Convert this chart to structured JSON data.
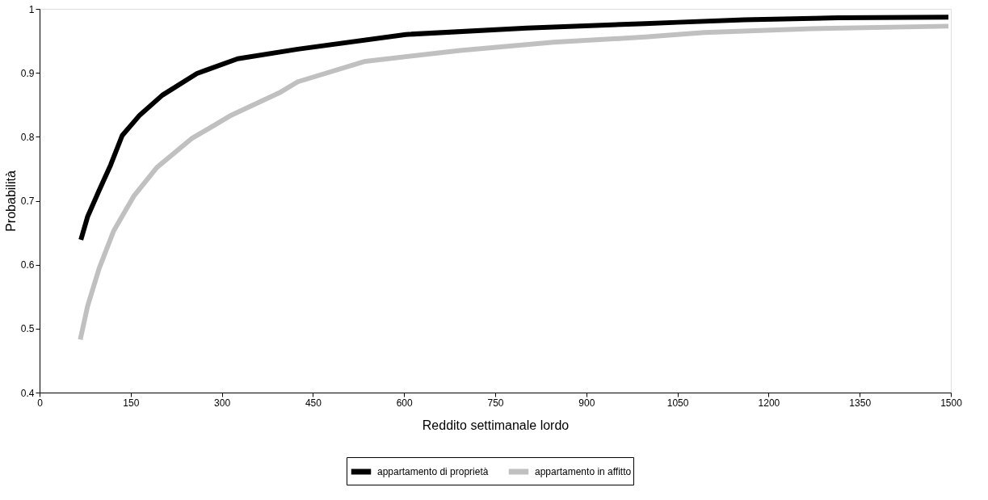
{
  "chart_data": {
    "type": "line",
    "xlabel": "Reddito settimanale lordo",
    "ylabel": "Probabilità",
    "xlim": [
      0,
      1500
    ],
    "xticks": [
      0,
      150,
      300,
      450,
      600,
      750,
      900,
      {
        "value": 1050,
        "label": "1050"
      },
      {
        "value": 1200,
        "label": "1200"
      },
      {
        "value": 1350,
        "label": "1350"
      },
      {
        "value": 1500,
        "label": "1500"
      }
    ],
    "ylim": [
      0.4,
      1
    ],
    "yticks": [
      0.4,
      0.5,
      0.6,
      0.7,
      0.8,
      0.9,
      1
    ],
    "grid": false,
    "legend": "bottom",
    "marker": "none",
    "line_style": "solid",
    "series": [
      {
        "name": "appartamento di proprietà",
        "color": "#000000",
        "x": [
          68,
          79,
          98,
          117,
          136,
          165,
          202,
          259,
          326,
          425,
          603,
          802,
          997,
          1050,
          1160,
          1315,
          1496
        ],
        "values": [
          0.639,
          0.675,
          0.716,
          0.756,
          0.802,
          0.834,
          0.865,
          0.899,
          0.922,
          0.937,
          0.96,
          0.97,
          0.977,
          0.979,
          0.983,
          0.986,
          0.987
        ]
      },
      {
        "name": "appartamento in affitto",
        "color": "#c0c0c0",
        "x": [
          67,
          79,
          98,
          122,
          155,
          193,
          250,
          316,
          397,
          425,
          536,
          692,
          846,
          997,
          1094,
          1271,
          1496
        ],
        "values": [
          0.483,
          0.535,
          0.594,
          0.653,
          0.707,
          0.752,
          0.797,
          0.834,
          0.87,
          0.886,
          0.918,
          0.935,
          0.948,
          0.956,
          0.963,
          0.969,
          0.973
        ]
      }
    ]
  }
}
